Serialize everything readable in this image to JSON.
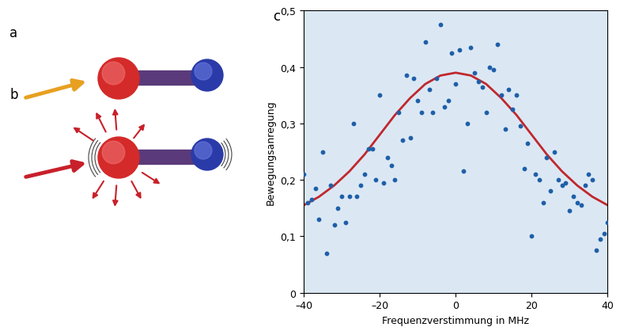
{
  "diagram": {
    "labels": [
      "a",
      "b"
    ]
  },
  "chart_data": {
    "type": "scatter",
    "title": "c",
    "x_label": "Frequenzverstimmung in MHz",
    "y_label": "Bewegungsanregung",
    "xlim": [
      -40,
      40
    ],
    "ylim": [
      0,
      0.5
    ],
    "xticks": [
      {
        "value": -40,
        "label": "–40"
      },
      {
        "value": -20,
        "label": "–20"
      },
      0,
      20,
      40
    ],
    "yticks": [
      0,
      {
        "value": 0.1,
        "label": "0,1"
      },
      {
        "value": 0.2,
        "label": "0,2"
      },
      {
        "value": 0.3,
        "label": "0,3"
      },
      {
        "value": 0.4,
        "label": "0,4"
      },
      {
        "value": 0.5,
        "label": "0,5"
      }
    ],
    "grid": false,
    "series": [
      {
        "type": "scatter",
        "color": "#1f5fa8",
        "marker": "o",
        "x": [
          -40,
          -39,
          -38,
          -37,
          -36,
          -35,
          -34,
          -33,
          -32,
          -31,
          -30,
          -29,
          -28,
          -27,
          -26,
          -25,
          -24,
          -23,
          -22,
          -21,
          -20,
          -19,
          -18,
          -17,
          -16,
          -15,
          -14,
          -13,
          -12,
          -11,
          -10,
          -9,
          -8,
          -7,
          -6,
          -5,
          -4,
          -3,
          -2,
          -1,
          0,
          1,
          2,
          3,
          4,
          5,
          6,
          7,
          8,
          9,
          10,
          11,
          12,
          13,
          14,
          15,
          16,
          17,
          18,
          19,
          20,
          21,
          22,
          23,
          24,
          25,
          26,
          27,
          28,
          29,
          30,
          31,
          32,
          33,
          34,
          35,
          36,
          37,
          38,
          39,
          40
        ],
        "values": [
          0.21,
          0.16,
          0.165,
          0.185,
          0.13,
          0.25,
          0.07,
          0.19,
          0.12,
          0.15,
          0.17,
          0.125,
          0.17,
          0.3,
          0.17,
          0.19,
          0.21,
          0.255,
          0.255,
          0.2,
          0.35,
          0.195,
          0.24,
          0.225,
          0.2,
          0.32,
          0.27,
          0.385,
          0.275,
          0.38,
          0.34,
          0.32,
          0.445,
          0.36,
          0.32,
          0.38,
          0.475,
          0.33,
          0.34,
          0.425,
          0.37,
          0.43,
          0.215,
          0.3,
          0.435,
          0.39,
          0.375,
          0.365,
          0.32,
          0.4,
          0.395,
          0.44,
          0.35,
          0.29,
          0.36,
          0.325,
          0.35,
          0.295,
          0.22,
          0.265,
          0.1,
          0.21,
          0.2,
          0.16,
          0.24,
          0.18,
          0.25,
          0.2,
          0.19,
          0.195,
          0.145,
          0.17,
          0.16,
          0.155,
          0.19,
          0.21,
          0.2,
          0.075,
          0.095,
          0.105,
          0.125
        ]
      },
      {
        "type": "line",
        "color": "#c0282d",
        "line_style": "solid",
        "x": [
          -40,
          -36,
          -32,
          -28,
          -24,
          -20,
          -16,
          -12,
          -8,
          -4,
          0,
          4,
          8,
          12,
          16,
          20,
          24,
          28,
          32,
          36,
          40
        ],
        "values": [
          0.155,
          0.17,
          0.19,
          0.215,
          0.245,
          0.28,
          0.315,
          0.345,
          0.37,
          0.385,
          0.39,
          0.385,
          0.37,
          0.345,
          0.315,
          0.28,
          0.245,
          0.215,
          0.19,
          0.17,
          0.155
        ]
      }
    ]
  }
}
